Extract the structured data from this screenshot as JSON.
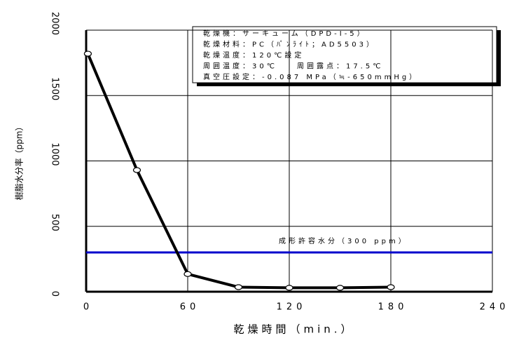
{
  "chart_data": {
    "type": "line",
    "xlabel": "乾燥時間（min.）",
    "ylabel": "樹脂水分率（ppm）",
    "annotations": [
      "乾燥機：サーキューム（DPD-I-5）",
      "乾燥材料：PC（ﾊﾟﾝﾗｲﾄ；AD5503）",
      "乾燥温度：120℃設定",
      "周囲温度：30℃　　周囲露点：17.5℃",
      "真空圧設定：-0.087 MPa（≒-650mmHg）"
    ],
    "x": [
      1,
      30,
      60,
      90,
      120,
      150,
      180
    ],
    "series": [
      {
        "name": "樹脂水分率",
        "color": "#000000",
        "values": [
          1820,
          930,
          135,
          35,
          30,
          30,
          35
        ]
      }
    ],
    "reference_line": {
      "value": 300,
      "label": "成形許容水分（300 ppm）",
      "color": "#0000cc"
    },
    "xlim": [
      0,
      240
    ],
    "xticks": [
      0,
      60,
      120,
      180,
      240
    ],
    "ylim": [
      0,
      2000
    ],
    "yticks": [
      0,
      500,
      1000,
      1500,
      2000
    ],
    "grid": true
  }
}
